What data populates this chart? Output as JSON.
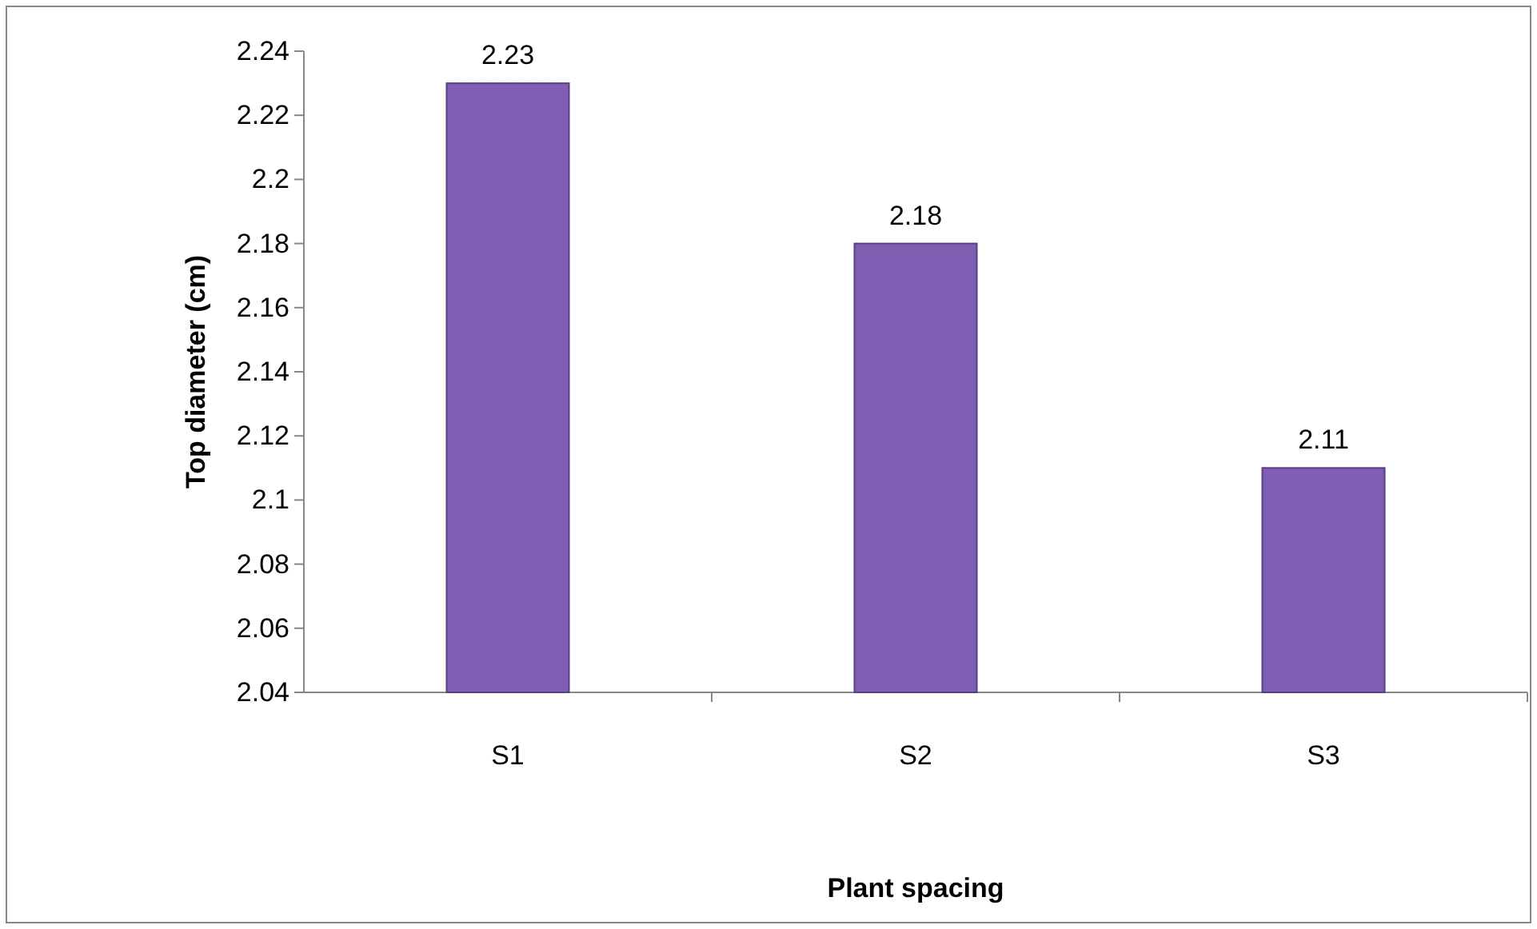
{
  "chart_data": {
    "type": "bar",
    "xlabel": "Plant spacing",
    "ylabel": "Top diameter (cm)",
    "categories": [
      "S1",
      "S2",
      "S3"
    ],
    "values": [
      2.23,
      2.18,
      2.11
    ],
    "color": "#7f5fb3",
    "ylim": [
      2.04,
      2.24
    ],
    "yticks": [
      2.04,
      2.06,
      2.08,
      2.1,
      2.12,
      2.14,
      2.16,
      2.18,
      2.2,
      2.22,
      2.24
    ],
    "data_labels": true
  }
}
